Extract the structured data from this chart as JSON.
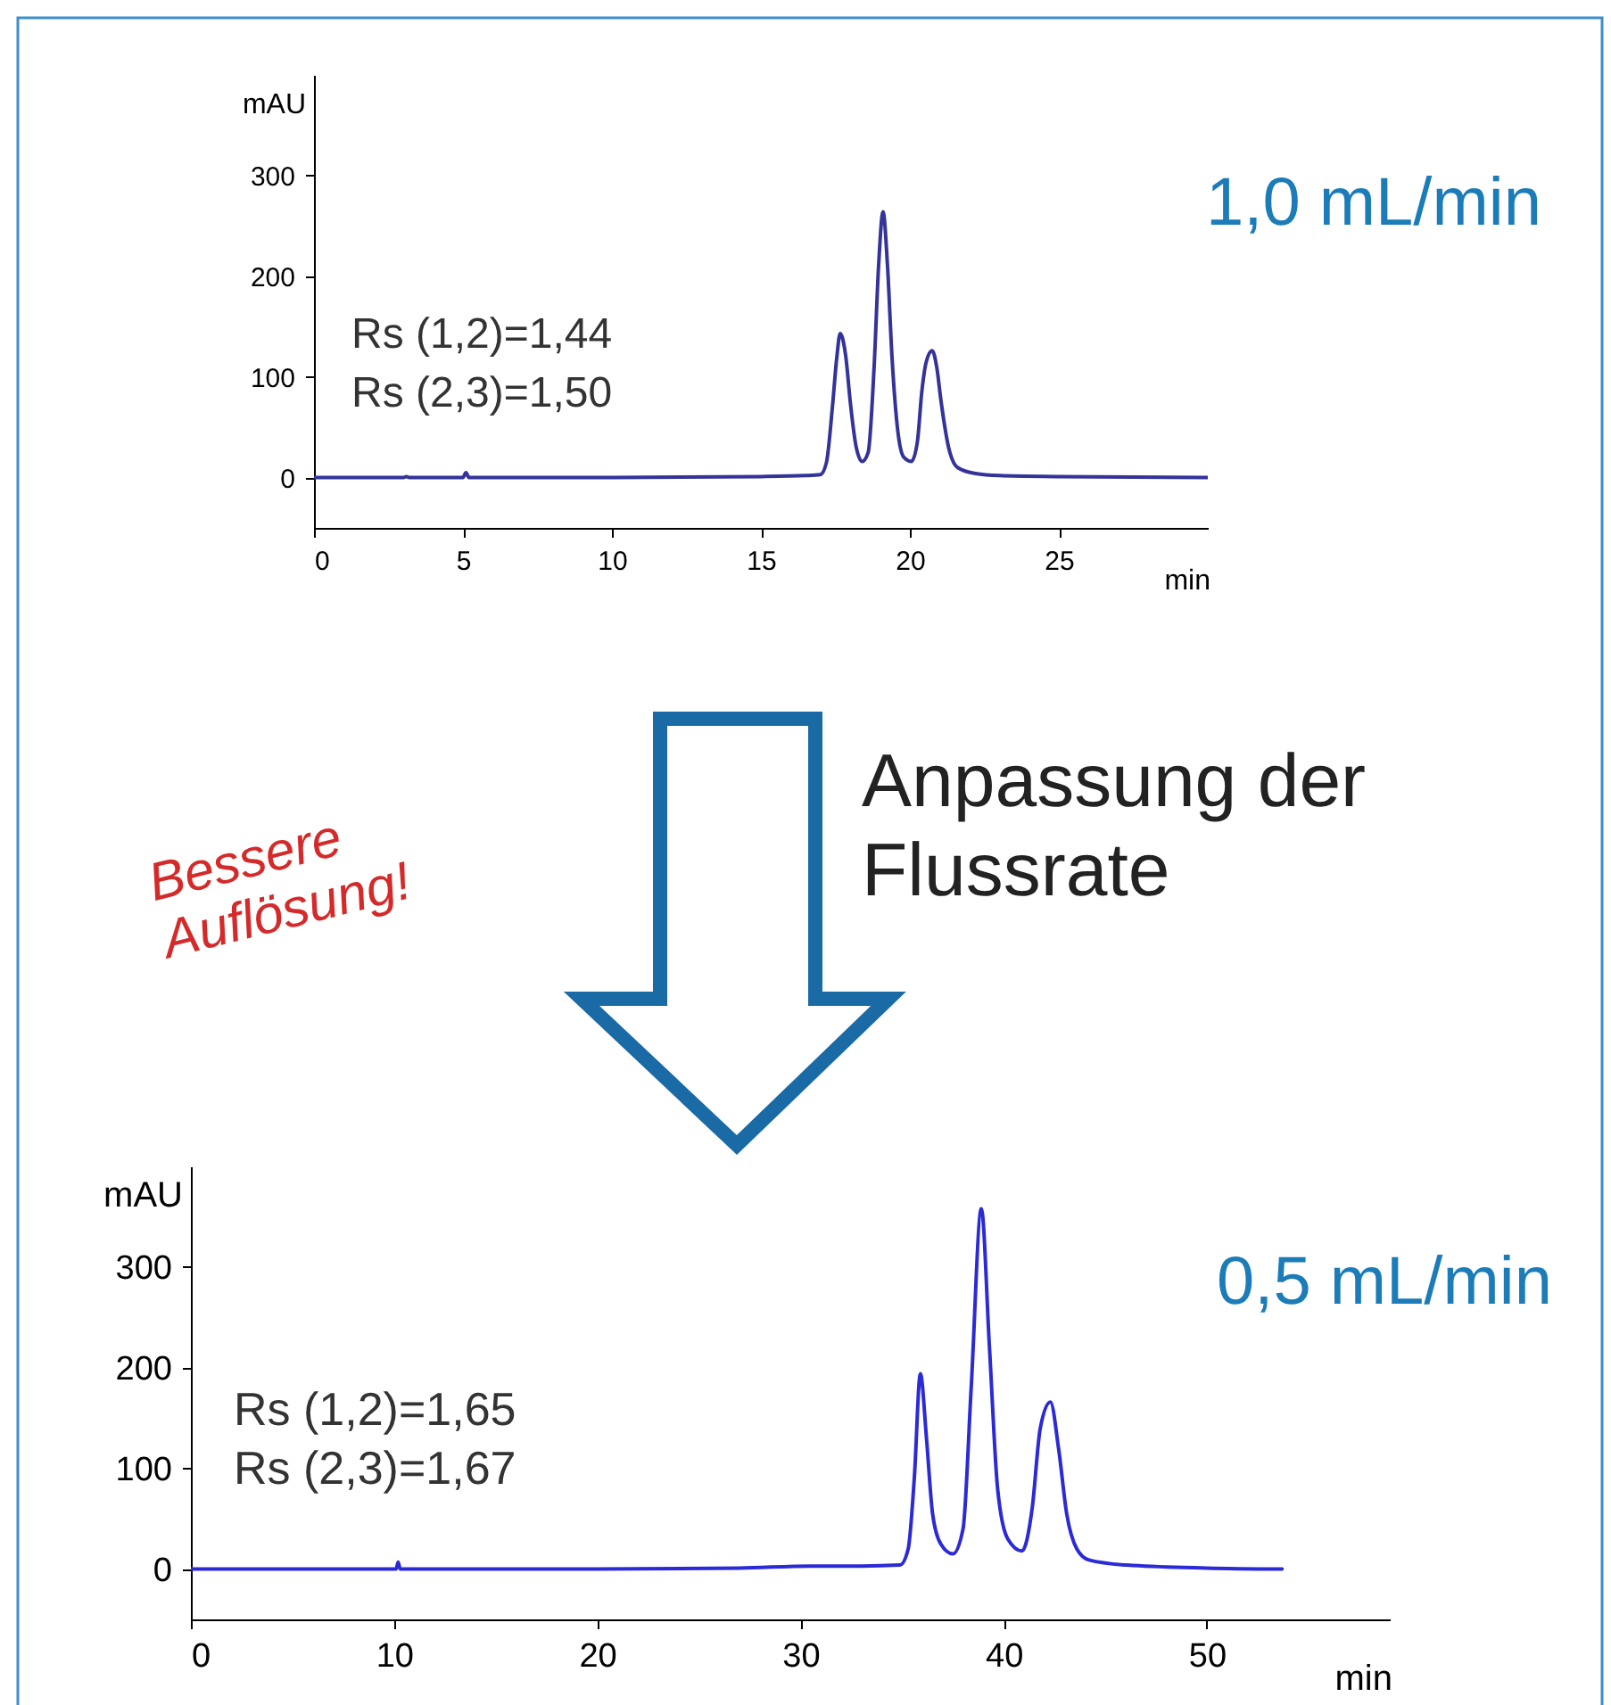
{
  "chart_data": [
    {
      "type": "line",
      "xlabel": "min",
      "ylabel": "mAU",
      "xlim": [
        0,
        30
      ],
      "ylim": [
        -50,
        400
      ],
      "xticks": [
        0,
        5,
        10,
        15,
        20,
        25
      ],
      "yticks": [
        0,
        100,
        200,
        300
      ],
      "x": [
        0,
        3,
        3.1,
        3.2,
        5,
        5.1,
        5.2,
        10,
        15,
        16.5,
        17,
        17.2,
        17.4,
        17.55,
        17.66,
        17.85,
        18,
        18.2,
        18.4,
        18.6,
        18.8,
        18.95,
        19.1,
        19.25,
        19.4,
        19.6,
        19.8,
        20.05,
        20.25,
        20.4,
        20.55,
        20.75,
        20.9,
        21.05,
        21.3,
        21.6,
        22.2,
        23,
        25,
        30
      ],
      "series": [
        {
          "color": "#33339a",
          "values": [
            0,
            0,
            1,
            0,
            0,
            5,
            0,
            0,
            1,
            2,
            3,
            15,
            70,
            120,
            143,
            120,
            75,
            30,
            16,
            25,
            110,
            210,
            264,
            210,
            120,
            45,
            20,
            16,
            35,
            85,
            115,
            126,
            110,
            75,
            30,
            10,
            4,
            2,
            1,
            0
          ]
        }
      ],
      "annotations": [
        "Rs (1,2)=1,44",
        "Rs (2,3)=1,50",
        "1,0 mL/min"
      ]
    },
    {
      "type": "line",
      "xlabel": "min",
      "ylabel": "mAU",
      "xlim": [
        0,
        59
      ],
      "ylim": [
        -50,
        400
      ],
      "xticks": [
        0,
        10,
        20,
        30,
        40,
        50
      ],
      "yticks": [
        0,
        100,
        200,
        300
      ],
      "x": [
        0,
        10.1,
        10.2,
        10.3,
        20,
        27,
        30.5,
        33,
        34.9,
        35.3,
        35.6,
        35.9,
        36.2,
        36.5,
        36.9,
        37.5,
        38,
        38.4,
        38.9,
        39.3,
        39.7,
        40.2,
        40.9,
        41.4,
        41.8,
        42.3,
        42.7,
        43.1,
        43.6,
        44.2,
        46,
        50,
        53.7
      ],
      "series": [
        {
          "color": "#2b2bd6",
          "values": [
            0,
            0,
            7,
            0,
            0,
            1,
            3,
            3,
            4,
            20,
            90,
            194,
            130,
            55,
            25,
            15,
            40,
            180,
            358,
            220,
            80,
            30,
            18,
            60,
            140,
            166,
            120,
            55,
            20,
            9,
            4,
            1,
            0
          ]
        }
      ],
      "annotations": [
        "Rs (1,2)=1,65",
        "Rs (2,3)=1,67",
        "0,5 mL/min",
        "Anpassung der Flussrate",
        "Bessere Auflösung!"
      ]
    }
  ]
}
